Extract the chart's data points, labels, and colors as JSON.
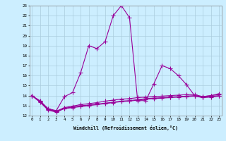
{
  "xlabel": "Windchill (Refroidissement éolien,°C)",
  "bg_color": "#cceeff",
  "grid_color": "#aaccdd",
  "line_color": "#990099",
  "xmin": 0,
  "xmax": 23,
  "ymin": 12,
  "ymax": 23,
  "lines": [
    [
      0,
      14.0,
      1,
      13.5,
      2,
      12.7,
      3,
      12.5,
      4,
      13.9,
      5,
      14.3,
      6,
      16.3,
      7,
      19.0,
      8,
      18.7,
      9,
      19.4,
      10,
      22.0,
      11,
      23.0,
      12,
      21.8,
      13,
      13.5,
      14,
      13.5,
      15,
      15.2,
      16,
      17.0,
      17,
      16.7,
      18,
      16.0,
      19,
      15.1,
      20,
      14.0,
      21,
      13.9,
      22,
      14.0,
      23,
      14.2
    ],
    [
      0,
      14.0,
      1,
      13.4,
      2,
      12.65,
      3,
      12.45,
      4,
      12.8,
      5,
      12.95,
      6,
      13.1,
      7,
      13.2,
      8,
      13.3,
      9,
      13.45,
      10,
      13.55,
      11,
      13.65,
      12,
      13.7,
      13,
      13.8,
      14,
      13.85,
      15,
      13.9,
      16,
      13.95,
      17,
      14.0,
      18,
      14.05,
      19,
      14.1,
      20,
      14.1,
      21,
      13.9,
      22,
      14.0,
      23,
      14.1
    ],
    [
      0,
      14.0,
      1,
      13.4,
      2,
      12.6,
      3,
      12.4,
      4,
      12.75,
      5,
      12.85,
      6,
      13.0,
      7,
      13.05,
      8,
      13.15,
      9,
      13.25,
      10,
      13.35,
      11,
      13.45,
      12,
      13.5,
      13,
      13.6,
      14,
      13.7,
      15,
      13.75,
      16,
      13.8,
      17,
      13.85,
      18,
      13.9,
      19,
      13.95,
      20,
      14.0,
      21,
      13.85,
      22,
      13.9,
      23,
      14.0
    ],
    [
      0,
      14.0,
      1,
      13.35,
      2,
      12.55,
      3,
      12.35,
      4,
      12.7,
      5,
      12.8,
      6,
      12.9,
      7,
      13.0,
      8,
      13.1,
      9,
      13.2,
      10,
      13.3,
      11,
      13.4,
      12,
      13.45,
      13,
      13.55,
      14,
      13.65,
      15,
      13.7,
      16,
      13.75,
      17,
      13.8,
      18,
      13.85,
      19,
      13.9,
      20,
      13.95,
      21,
      13.8,
      22,
      13.85,
      23,
      13.95
    ]
  ],
  "xtick_labels": [
    "0",
    "1",
    "2",
    "3",
    "4",
    "5",
    "6",
    "7",
    "8",
    "9",
    "10",
    "11",
    "12",
    "13",
    "14",
    "15",
    "16",
    "17",
    "18",
    "19",
    "20",
    "21",
    "22",
    "23"
  ],
  "ytick_labels": [
    "12",
    "13",
    "14",
    "15",
    "16",
    "17",
    "18",
    "19",
    "20",
    "21",
    "22",
    "23"
  ]
}
